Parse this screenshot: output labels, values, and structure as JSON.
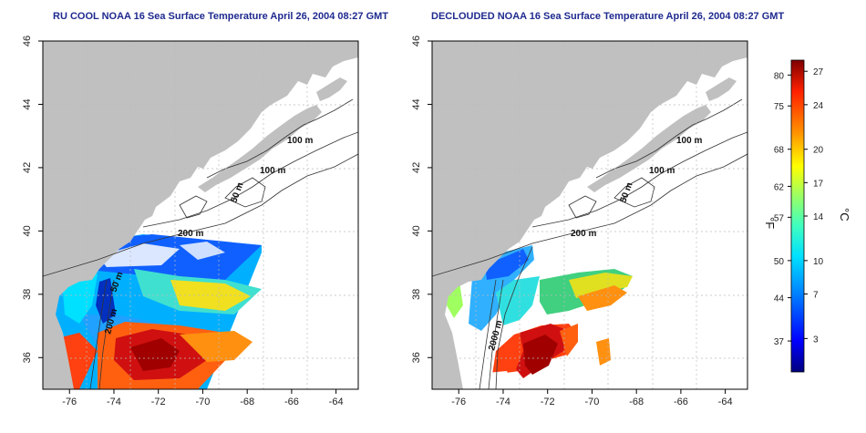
{
  "maps": [
    {
      "title": "RU COOL NOAA 16 Sea Surface Temperature April 26, 2004 08:27 GMT",
      "contour_labels": [
        "100 m",
        "100 m",
        "50 m",
        "200 m",
        "50 m",
        "200 m"
      ]
    },
    {
      "title": "DECLOUDED NOAA 16 Sea Surface Temperature April 26, 2004 08:27 GMT",
      "contour_labels": [
        "100 m",
        "100 m",
        "50 m",
        "200 m",
        "2000 m"
      ]
    }
  ],
  "axes": {
    "x_ticks": [
      "-76",
      "-74",
      "-72",
      "-70",
      "-68",
      "-66",
      "-64"
    ],
    "y_ticks": [
      "36",
      "38",
      "40",
      "42",
      "44",
      "46"
    ],
    "x_range": [
      -77.2,
      -63.0
    ],
    "y_range": [
      35.0,
      46.0
    ]
  },
  "colorbar": {
    "fahrenheit_label": "°F",
    "celsius_label": "°C",
    "fahrenheit_ticks": [
      "80",
      "75",
      "68",
      "62",
      "57",
      "50",
      "44",
      "37"
    ],
    "celsius_ticks": [
      "27",
      "24",
      "20",
      "17",
      "14",
      "10",
      "7",
      "3"
    ],
    "range_c": [
      0,
      28
    ],
    "colors": [
      "#00007f",
      "#0000ff",
      "#0080ff",
      "#00e0ff",
      "#40ffbf",
      "#a0ff60",
      "#ffff00",
      "#ff9000",
      "#ff2000",
      "#7f0000"
    ]
  },
  "colors": {
    "land": "#c0c0c0",
    "title": "#1f2a8f",
    "grid": "#bbbbbb"
  }
}
